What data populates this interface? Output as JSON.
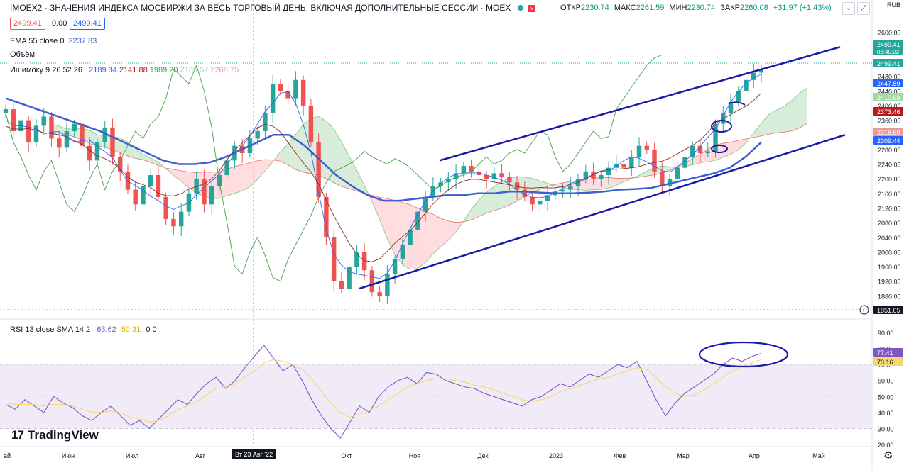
{
  "header": {
    "symbol_title": "IMOEX2 - ЗНАЧЕНИЯ ИНДЕКСА МОСБИРЖИ ЗА ВЕСЬ ТОРГОВЫЙ ДЕНЬ, ВКЛЮЧАЯ ДОПОЛНИТЕЛЬНЫЕ СЕССИИ · MOEX",
    "open_label": "ОТКР",
    "open": "2230.74",
    "high_label": "МАКС",
    "high": "2261.59",
    "low_label": "МИН",
    "low": "2230.74",
    "close_label": "ЗАКР",
    "close": "2260.08",
    "change": "+31.97 (+1.43%)",
    "sell_price": "2499.41",
    "spread": "0.00",
    "buy_price": "2499.41",
    "currency": "RUB",
    "status_color": "#26a69a"
  },
  "indicators": {
    "ema_name": "EMA 55 close 0",
    "ema_value": "2237.83",
    "volume_name": "Объём",
    "ichimoku_name": "Ишимоку 9 26 52 26",
    "ichimoku_values": [
      "2189.34",
      "2141.88",
      "1989.20",
      "2188.52",
      "2268.75"
    ],
    "rsi_name": "RSI 13 close SMA 14 2",
    "rsi_value": "63.62",
    "rsi_sma_value": "50.31",
    "rsi_extra": "0 0"
  },
  "toolbar": {
    "collapse_icon": "chevron-down-icon",
    "maximize_icon": "maximize-icon"
  },
  "branding": {
    "logo": "TradingView",
    "logo_mark": "17"
  },
  "x_axis": {
    "labels": [
      "ай",
      "Июн",
      "Июл",
      "Авг",
      "Окт",
      "Ноя",
      "Дек",
      "2023",
      "Фев",
      "Мар",
      "Апр",
      "Май"
    ],
    "crosshair_date": "Вт 23 Авг '22"
  },
  "chart_data": [
    {
      "type": "candlestick",
      "title": "IMOEX2",
      "ylim": [
        1840,
        2580
      ],
      "y_ticks": [
        1880,
        1920,
        1960,
        2000,
        2040,
        2080,
        2120,
        2160,
        2200,
        2240,
        2280,
        2320,
        2360,
        2400,
        2440,
        2480,
        2520,
        2560,
        2600
      ],
      "price_tags": [
        {
          "value": "2499.41",
          "sub": "03:40:22",
          "color": "#26a69a"
        },
        {
          "value": "2499.41",
          "color": "#26a69a"
        },
        {
          "value": "2447.89",
          "color": "#2962ff"
        },
        {
          "value": "2410.68",
          "color": "#a5d6a7"
        },
        {
          "value": "2373.46",
          "color": "#b71c1c"
        },
        {
          "value": "2318.60",
          "color": "#ef9a9a"
        },
        {
          "value": "2309.44",
          "color": "#2962ff"
        },
        {
          "value": "1851.65",
          "color": "#131722"
        }
      ],
      "closes": [
        2390,
        2330,
        2360,
        2300,
        2345,
        2370,
        2310,
        2285,
        2330,
        2350,
        2290,
        2250,
        2300,
        2340,
        2260,
        2220,
        2170,
        2130,
        2180,
        2210,
        2150,
        2090,
        2070,
        2110,
        2160,
        2200,
        2130,
        2180,
        2210,
        2250,
        2290,
        2270,
        2310,
        2330,
        2380,
        2460,
        2440,
        2420,
        2470,
        2400,
        2300,
        2150,
        2040,
        1920,
        1900,
        1960,
        2000,
        1950,
        1890,
        1880,
        1940,
        1980,
        2020,
        2060,
        2110,
        2150,
        2180,
        2190,
        2200,
        2215,
        2235,
        2220,
        2210,
        2200,
        2215,
        2205,
        2190,
        2170,
        2150,
        2130,
        2140,
        2155,
        2165,
        2170,
        2180,
        2200,
        2220,
        2200,
        2210,
        2230,
        2240,
        2230,
        2260,
        2290,
        2280,
        2220,
        2180,
        2200,
        2230,
        2260,
        2290,
        2270,
        2275,
        2350,
        2380,
        2410,
        2440,
        2470,
        2490,
        2499
      ],
      "candle_colors": {
        "up": "#26a69a",
        "down": "#ef5350"
      },
      "series": [
        {
          "name": "EMA 55",
          "color": "#3e5fcf",
          "values": [
            2420,
            2405,
            2390,
            2375,
            2360,
            2345,
            2330,
            2310,
            2290,
            2270,
            2250,
            2240,
            2240,
            2245,
            2260,
            2280,
            2300,
            2320,
            2320,
            2290,
            2250,
            2210,
            2180,
            2155,
            2140,
            2140,
            2145,
            2150,
            2155,
            2155,
            2160,
            2160,
            2165,
            2165,
            2162,
            2160,
            2160,
            2162,
            2165,
            2170,
            2172,
            2175,
            2185,
            2195,
            2205,
            2215,
            2230,
            2260,
            2300
          ]
        }
      ]
    },
    {
      "type": "line",
      "title": "RSI 13",
      "ylim": [
        20,
        90
      ],
      "y_ticks": [
        20,
        30,
        40,
        50,
        60,
        70,
        80,
        90
      ],
      "band": [
        30,
        70
      ],
      "tags": [
        {
          "value": "77.41",
          "color": "#7e57c2"
        },
        {
          "value": "73.16",
          "color": "#f5d76e"
        }
      ],
      "series": [
        {
          "name": "RSI",
          "color": "#7e57c2",
          "values": [
            45,
            42,
            48,
            44,
            40,
            50,
            46,
            43,
            38,
            35,
            40,
            44,
            38,
            32,
            35,
            30,
            36,
            42,
            48,
            45,
            52,
            58,
            62,
            55,
            60,
            68,
            75,
            82,
            74,
            66,
            70,
            60,
            48,
            38,
            30,
            24,
            34,
            44,
            40,
            50,
            56,
            60,
            62,
            58,
            65,
            64,
            60,
            58,
            56,
            55,
            52,
            50,
            48,
            46,
            44,
            48,
            50,
            54,
            58,
            56,
            60,
            64,
            62,
            66,
            70,
            68,
            72,
            60,
            48,
            38,
            46,
            52,
            56,
            60,
            64,
            70,
            74,
            72,
            75,
            77
          ]
        },
        {
          "name": "SMA",
          "color": "#f5d76e",
          "values": [
            46,
            45,
            45,
            45,
            44,
            45,
            45,
            44,
            42,
            40,
            40,
            41,
            40,
            37,
            36,
            34,
            35,
            38,
            42,
            44,
            47,
            51,
            55,
            56,
            58,
            62,
            66,
            71,
            73,
            72,
            70,
            67,
            61,
            53,
            46,
            40,
            37,
            39,
            41,
            44,
            48,
            52,
            56,
            58,
            60,
            61,
            61,
            60,
            59,
            57,
            56,
            54,
            52,
            50,
            48,
            47,
            48,
            50,
            53,
            55,
            57,
            59,
            61,
            62,
            64,
            66,
            68,
            67,
            62,
            56,
            52,
            50,
            51,
            54,
            58,
            62,
            66,
            69,
            71,
            73
          ]
        }
      ]
    }
  ]
}
